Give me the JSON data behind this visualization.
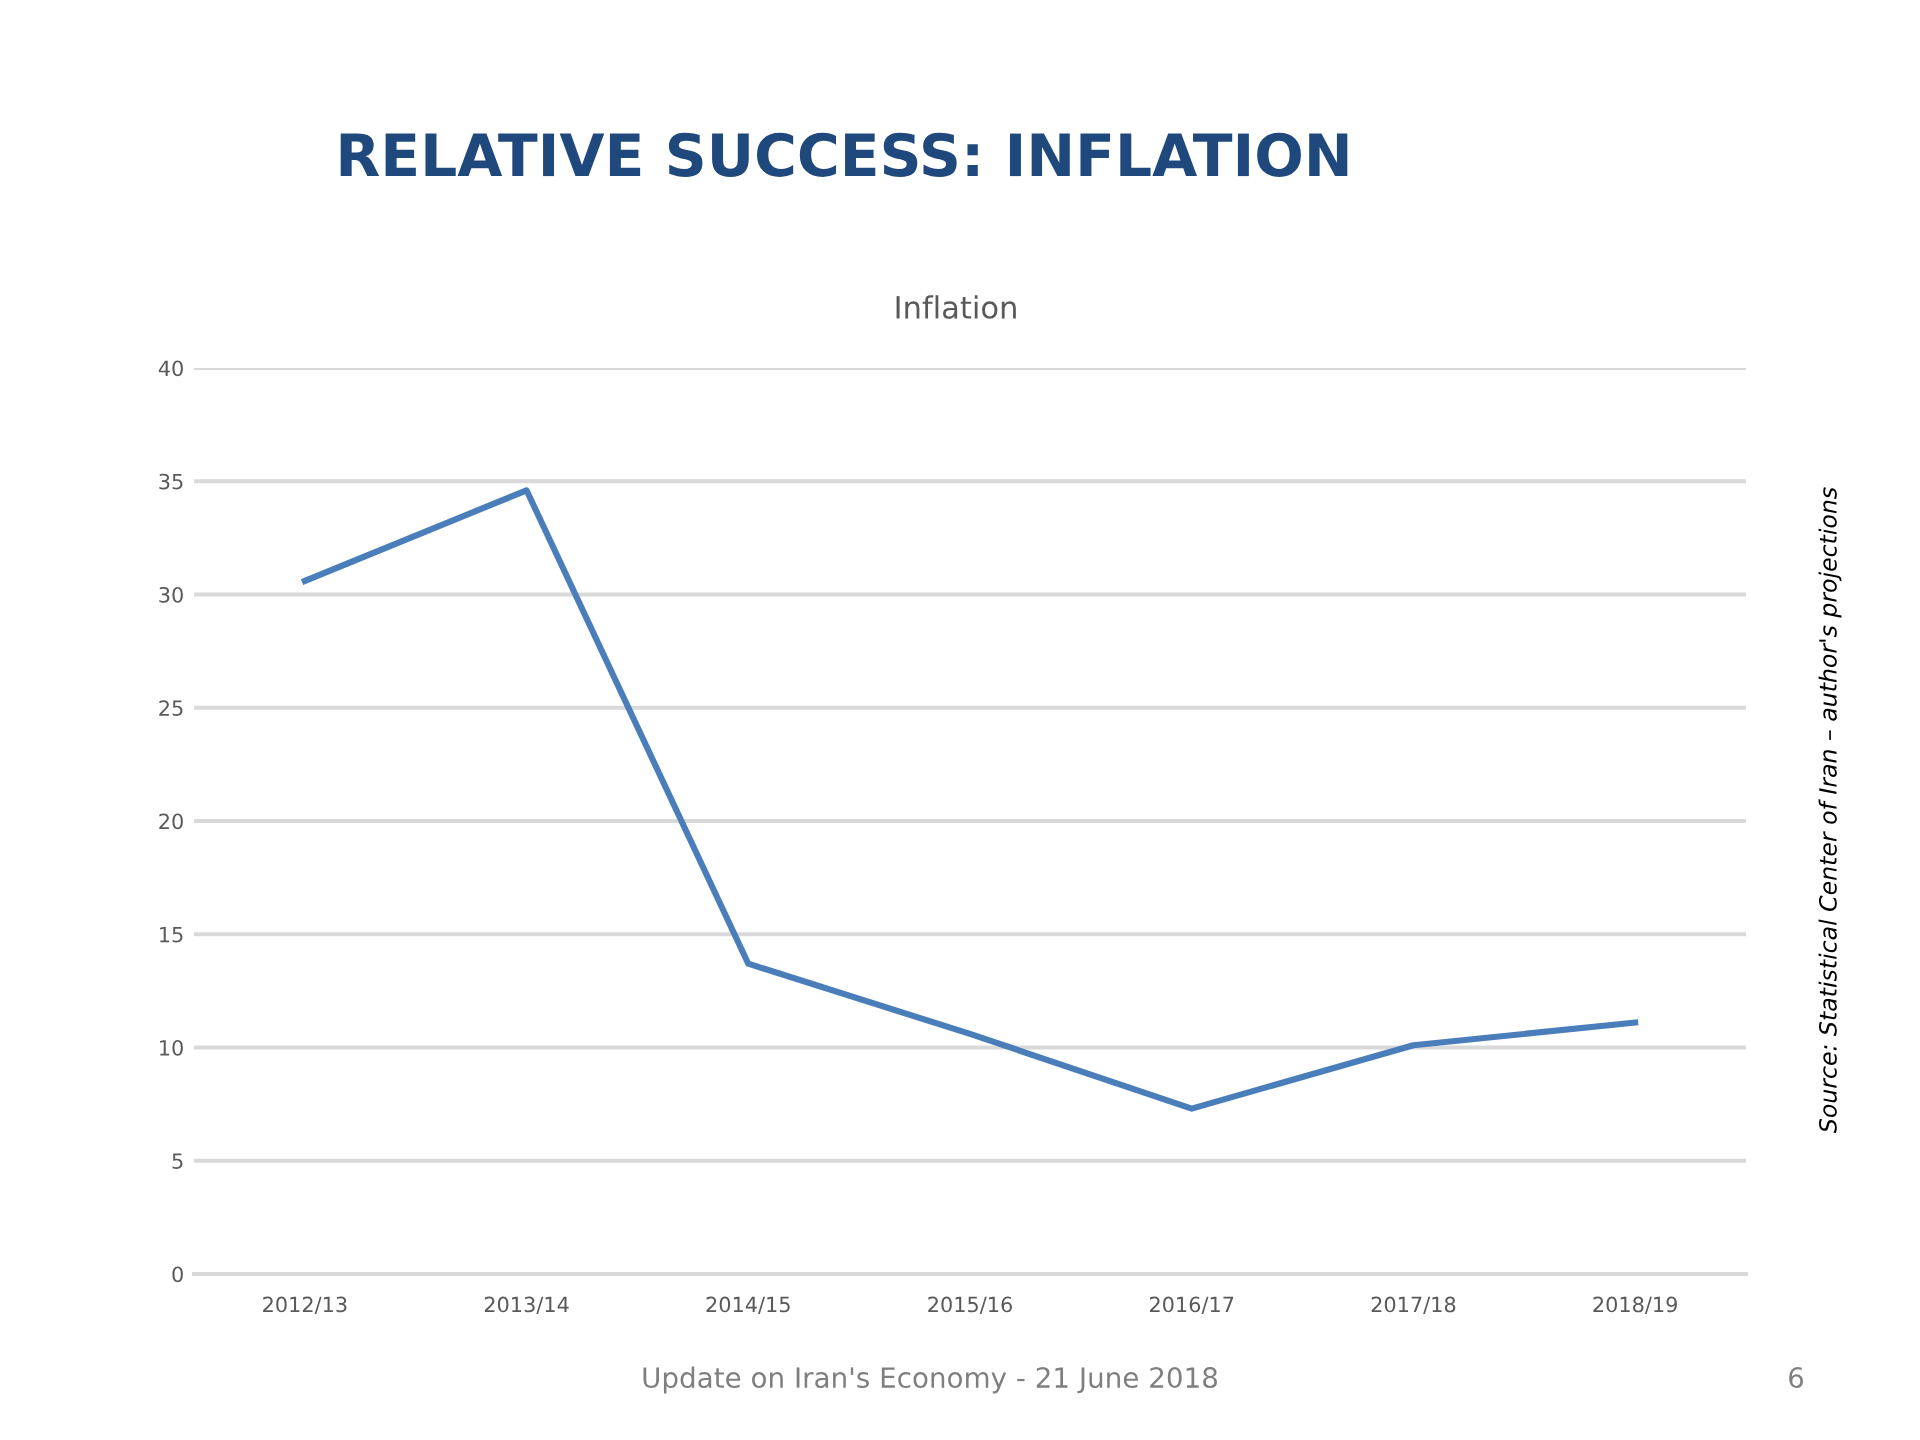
{
  "chart_data": {
    "type": "line",
    "title": "RELATIVE SUCCESS: INFLATION",
    "subtitle": "Inflation",
    "categories": [
      "2012/13",
      "2013/14",
      "2014/15",
      "2015/16",
      "2016/17",
      "2017/18",
      "2018/19"
    ],
    "series": [
      {
        "color": "#4a7ebb",
        "values": [
          30.6,
          34.6,
          13.7,
          10.6,
          7.3,
          10.1,
          11.1
        ]
      }
    ],
    "ylim": [
      0,
      40
    ],
    "yticks": [
      0,
      5,
      10,
      15,
      20,
      25,
      30,
      35,
      40
    ],
    "grid": "y",
    "marker": "none",
    "line_style": "solid",
    "annotations": [
      "Source: Statistical Center of Iran – author's projections",
      "Update on Iran's Economy - 21 June 2018",
      "6"
    ]
  }
}
